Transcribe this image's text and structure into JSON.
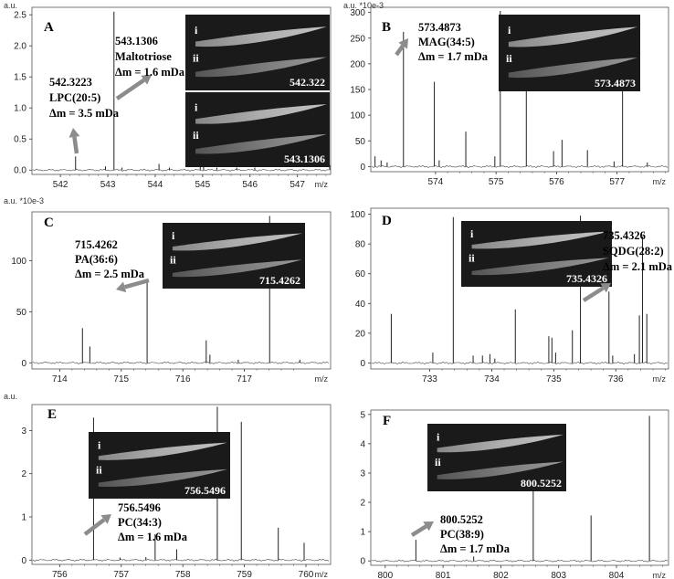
{
  "chart_data": [
    {
      "panel": "A",
      "type": "line",
      "ylabel": "a.u.",
      "xlabel": "m/z",
      "xlim": [
        541.4,
        547.7
      ],
      "ylim": [
        -0.07,
        2.62
      ],
      "xticks": [
        542,
        543,
        544,
        545,
        546,
        547
      ],
      "yticks": [
        0.0,
        0.5,
        1.0,
        1.5,
        2.0,
        2.5
      ],
      "ytick_labels": [
        "0.0",
        "0.5",
        "1.0",
        "1.5",
        "2.0",
        "2.5"
      ],
      "peaks": [
        [
          542.32,
          0.22
        ],
        [
          542.95,
          0.06
        ],
        [
          543.13,
          2.55
        ],
        [
          543.3,
          0.04
        ],
        [
          544.08,
          0.1
        ],
        [
          544.3,
          0.04
        ],
        [
          544.95,
          0.05
        ],
        [
          545.02,
          0.05
        ],
        [
          545.3,
          0.04
        ],
        [
          545.72,
          0.04
        ],
        [
          546.1,
          0.04
        ],
        [
          547.68,
          0.08
        ]
      ],
      "annotations": [
        {
          "lines": [
            "543.1306",
            "Maltotriose",
            "Δm = 1.6 mDa"
          ]
        },
        {
          "lines": [
            "542.3223",
            "LPC(20:5)",
            "Δm = 3.5 mDa"
          ]
        }
      ],
      "insets": [
        {
          "label": "542.322",
          "rows": [
            "i",
            "ii"
          ]
        },
        {
          "label": "543.1306",
          "rows": [
            "i",
            "ii"
          ]
        }
      ]
    },
    {
      "panel": "B",
      "type": "line",
      "ylabel": "a.u. *10e-3",
      "xlabel": "m/z",
      "xlim": [
        572.93,
        577.85
      ],
      "ylim": [
        -10,
        310
      ],
      "xticks": [
        574,
        575,
        576,
        577
      ],
      "yticks": [
        0,
        50,
        100,
        150,
        200,
        250,
        300
      ],
      "ytick_labels": [
        "0",
        "50",
        "100",
        "150",
        "200",
        "250",
        "300"
      ],
      "peaks": [
        [
          573.0,
          20
        ],
        [
          573.1,
          12
        ],
        [
          573.2,
          8
        ],
        [
          573.47,
          262
        ],
        [
          573.98,
          165
        ],
        [
          574.06,
          12
        ],
        [
          574.5,
          68
        ],
        [
          574.98,
          20
        ],
        [
          575.07,
          303
        ],
        [
          575.5,
          158
        ],
        [
          575.95,
          30
        ],
        [
          576.09,
          52
        ],
        [
          576.51,
          32
        ],
        [
          576.95,
          10
        ],
        [
          577.09,
          202
        ],
        [
          577.5,
          8
        ]
      ],
      "annotations": [
        {
          "lines": [
            "573.4873",
            "MAG(34:5)",
            "Δm = 1.7 mDa"
          ]
        }
      ],
      "insets": [
        {
          "label": "573.4873",
          "rows": [
            "i",
            "ii"
          ]
        }
      ]
    },
    {
      "panel": "C",
      "type": "line",
      "ylabel": "a.u. *10e-3",
      "xlabel": "m/z",
      "xlim": [
        713.55,
        718.4
      ],
      "ylim": [
        -6,
        148
      ],
      "xticks": [
        714,
        715,
        716,
        717
      ],
      "yticks": [
        0,
        50,
        100
      ],
      "ytick_labels": [
        "0",
        "50",
        "100"
      ],
      "peaks": [
        [
          714.37,
          34
        ],
        [
          714.49,
          16
        ],
        [
          715.42,
          82
        ],
        [
          716.38,
          22
        ],
        [
          716.44,
          8
        ],
        [
          716.9,
          3
        ],
        [
          717.41,
          144
        ],
        [
          717.9,
          3
        ]
      ],
      "annotations": [
        {
          "lines": [
            "715.4262",
            "PA(36:6)",
            "Δm = 2.5 mDa"
          ]
        }
      ],
      "insets": [
        {
          "label": "715.4262",
          "rows": [
            "i",
            "ii"
          ]
        }
      ]
    },
    {
      "panel": "D",
      "type": "line",
      "ylabel": "",
      "xlabel": "m/z",
      "xlim": [
        732.05,
        736.85
      ],
      "ylim": [
        -4,
        104
      ],
      "xticks": [
        733,
        734,
        735,
        736
      ],
      "yticks": [
        0,
        20,
        40,
        60,
        80,
        100
      ],
      "ytick_labels": [
        "0",
        "20",
        "40",
        "60",
        "80",
        "100"
      ],
      "peaks": [
        [
          732.38,
          33
        ],
        [
          733.05,
          7
        ],
        [
          733.38,
          98
        ],
        [
          733.7,
          5
        ],
        [
          733.85,
          5
        ],
        [
          733.97,
          6
        ],
        [
          734.05,
          3
        ],
        [
          734.38,
          36
        ],
        [
          734.92,
          18
        ],
        [
          734.97,
          17
        ],
        [
          735.03,
          7
        ],
        [
          735.3,
          22
        ],
        [
          735.43,
          99
        ],
        [
          735.89,
          48
        ],
        [
          735.95,
          5
        ],
        [
          736.3,
          6
        ],
        [
          736.38,
          32
        ],
        [
          736.43,
          85
        ],
        [
          736.5,
          33
        ]
      ],
      "annotations": [
        {
          "lines": [
            "735.4326",
            "SQDG(28:2)",
            "Δm = 2.1 mDa"
          ]
        }
      ],
      "insets": [
        {
          "label": "735.4326",
          "rows": [
            "i",
            "ii"
          ]
        }
      ]
    },
    {
      "panel": "E",
      "type": "line",
      "ylabel": "a.u.",
      "xlabel": "m/z",
      "xlim": [
        755.55,
        760.4
      ],
      "ylim": [
        -0.1,
        3.6
      ],
      "xticks": [
        756,
        757,
        758,
        759,
        760
      ],
      "yticks": [
        0,
        1,
        2,
        3
      ],
      "ytick_labels": [
        "0",
        "1",
        "2",
        "3"
      ],
      "peaks": [
        [
          756.55,
          3.3
        ],
        [
          756.98,
          0.06
        ],
        [
          757.4,
          0.07
        ],
        [
          757.55,
          0.6
        ],
        [
          757.9,
          0.25
        ],
        [
          758.56,
          3.55
        ],
        [
          758.95,
          3.2
        ],
        [
          759.55,
          0.75
        ],
        [
          759.97,
          0.4
        ]
      ],
      "annotations": [
        {
          "lines": [
            "756.5496",
            "PC(34:3)",
            "Δm = 1.6 mDa"
          ]
        }
      ],
      "insets": [
        {
          "label": "756.5496",
          "rows": [
            "i",
            "ii"
          ]
        }
      ]
    },
    {
      "panel": "F",
      "type": "line",
      "ylabel": "",
      "xlabel": "m/z",
      "xlim": [
        799.75,
        804.9
      ],
      "ylim": [
        -0.15,
        5.15
      ],
      "xticks": [
        800,
        801,
        802,
        803,
        804
      ],
      "yticks": [
        0,
        1,
        2,
        3,
        4,
        5
      ],
      "ytick_labels": [
        "0",
        "1",
        "2",
        "3",
        "4",
        "5"
      ],
      "peaks": [
        [
          800.53,
          0.72
        ],
        [
          801.53,
          0.15
        ],
        [
          802.56,
          3.95
        ],
        [
          803.56,
          1.55
        ],
        [
          804.57,
          4.95
        ]
      ],
      "annotations": [
        {
          "lines": [
            "800.5252",
            "PC(38:9)",
            "Δm = 1.7 mDa"
          ]
        }
      ],
      "insets": [
        {
          "label": "800.5252",
          "rows": [
            "i",
            "ii"
          ]
        }
      ]
    }
  ]
}
